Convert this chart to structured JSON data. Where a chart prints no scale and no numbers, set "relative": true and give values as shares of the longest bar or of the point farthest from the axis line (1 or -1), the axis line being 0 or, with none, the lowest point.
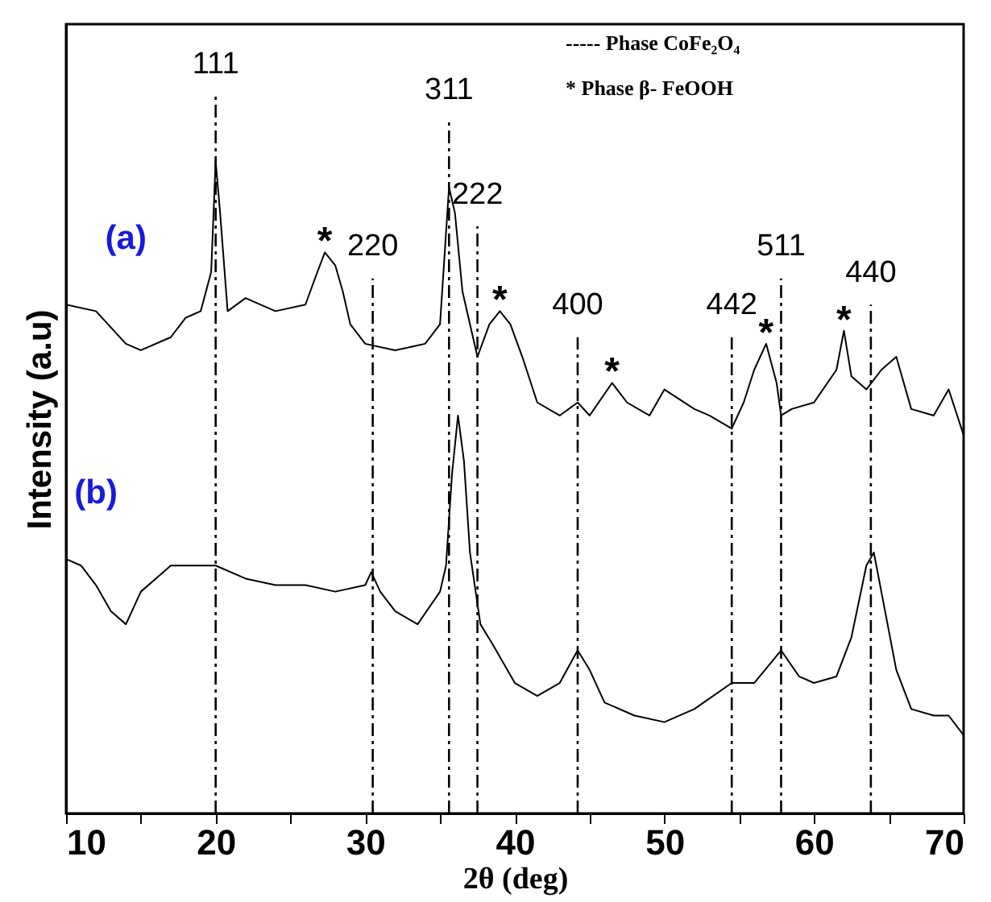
{
  "chart_data": {
    "type": "line",
    "xlabel": "2θ (deg)",
    "ylabel": "Intensity (a.u)",
    "relative": true,
    "xlim": [
      10,
      70
    ],
    "xticks": [
      10,
      {
        "value": 15,
        "label": null
      },
      20,
      {
        "value": 25,
        "label": null
      },
      30,
      {
        "value": 35,
        "label": null
      },
      40,
      {
        "value": 45,
        "label": null
      },
      50,
      {
        "value": 55,
        "label": null
      },
      60,
      {
        "value": 65,
        "label": null
      },
      70
    ],
    "series": [
      {
        "name": "(a)",
        "color": "#000000",
        "x": [
          10,
          12,
          14,
          15,
          17,
          18,
          19,
          19.7,
          20,
          20.3,
          20.8,
          22,
          24,
          26,
          26.8,
          27.3,
          28,
          28.5,
          29,
          30,
          32,
          34,
          35,
          35.6,
          36,
          36.5,
          37.5,
          38.3,
          39,
          39.7,
          40.5,
          41.5,
          43,
          44.2,
          45,
          46.5,
          47.5,
          49,
          50,
          52,
          53,
          54.5,
          55.3,
          56,
          56.8,
          57.5,
          57.8,
          58.5,
          60,
          61.5,
          62,
          62.5,
          63.5,
          64.5,
          65.5,
          66.5,
          68,
          69,
          70
        ],
        "values": [
          0.78,
          0.77,
          0.72,
          0.71,
          0.73,
          0.76,
          0.77,
          0.83,
          1.0,
          0.92,
          0.77,
          0.79,
          0.77,
          0.78,
          0.83,
          0.86,
          0.84,
          0.8,
          0.75,
          0.72,
          0.71,
          0.72,
          0.75,
          0.96,
          0.92,
          0.8,
          0.7,
          0.75,
          0.77,
          0.75,
          0.7,
          0.63,
          0.61,
          0.63,
          0.61,
          0.66,
          0.63,
          0.61,
          0.65,
          0.62,
          0.61,
          0.59,
          0.63,
          0.68,
          0.72,
          0.66,
          0.61,
          0.62,
          0.63,
          0.68,
          0.74,
          0.67,
          0.65,
          0.68,
          0.7,
          0.62,
          0.61,
          0.65,
          0.58
        ]
      },
      {
        "name": "(b)",
        "color": "#000000",
        "x": [
          10,
          11,
          12,
          13,
          14,
          15,
          16,
          17,
          18,
          20,
          22,
          24,
          26,
          28,
          30,
          30.4,
          31,
          32,
          33.5,
          35,
          35.4,
          35.8,
          36.2,
          36.6,
          37,
          37.7,
          38.5,
          40,
          41.5,
          43,
          44.2,
          45,
          46,
          48,
          50,
          52,
          54.5,
          56,
          57.8,
          59,
          60,
          61.5,
          62.5,
          63.5,
          64,
          64.5,
          65.5,
          66.5,
          68,
          69,
          70
        ],
        "values": [
          0.39,
          0.38,
          0.35,
          0.31,
          0.29,
          0.34,
          0.36,
          0.38,
          0.38,
          0.38,
          0.36,
          0.35,
          0.35,
          0.34,
          0.35,
          0.37,
          0.34,
          0.31,
          0.29,
          0.34,
          0.38,
          0.52,
          0.61,
          0.54,
          0.4,
          0.29,
          0.26,
          0.2,
          0.18,
          0.2,
          0.25,
          0.22,
          0.17,
          0.15,
          0.14,
          0.16,
          0.2,
          0.2,
          0.25,
          0.21,
          0.2,
          0.21,
          0.27,
          0.38,
          0.4,
          0.34,
          0.22,
          0.16,
          0.15,
          0.15,
          0.12
        ]
      }
    ],
    "ref_lines": [
      {
        "axis": "x",
        "value": 20,
        "line_style": "dashed",
        "color": "#000000"
      },
      {
        "axis": "x",
        "value": 30.5,
        "line_style": "dashed",
        "color": "#000000"
      },
      {
        "axis": "x",
        "value": 35.6,
        "line_style": "dashed",
        "color": "#000000"
      },
      {
        "axis": "x",
        "value": 37.5,
        "line_style": "dashed",
        "color": "#000000"
      },
      {
        "axis": "x",
        "value": 44.2,
        "line_style": "dashed",
        "color": "#000000"
      },
      {
        "axis": "x",
        "value": 54.5,
        "line_style": "dashed",
        "color": "#000000"
      },
      {
        "axis": "x",
        "value": 57.8,
        "line_style": "dashed",
        "color": "#000000"
      },
      {
        "axis": "x",
        "value": 63.8,
        "line_style": "dashed",
        "color": "#000000"
      }
    ],
    "annotations": [
      "111",
      "220",
      "311",
      "222",
      "400",
      "442",
      "511",
      "440",
      {
        "text": "*",
        "x": 27.3,
        "y": 0.86
      },
      {
        "text": "*",
        "x": 39,
        "y": 0.77
      },
      {
        "text": "*",
        "x": 46.5,
        "y": 0.66
      },
      {
        "text": "*",
        "x": 56.8,
        "y": 0.72
      },
      {
        "text": "*",
        "x": 62,
        "y": 0.74
      },
      "----- Phase CoFe₂O₄",
      "*   Phase β- FeOOH"
    ]
  }
}
